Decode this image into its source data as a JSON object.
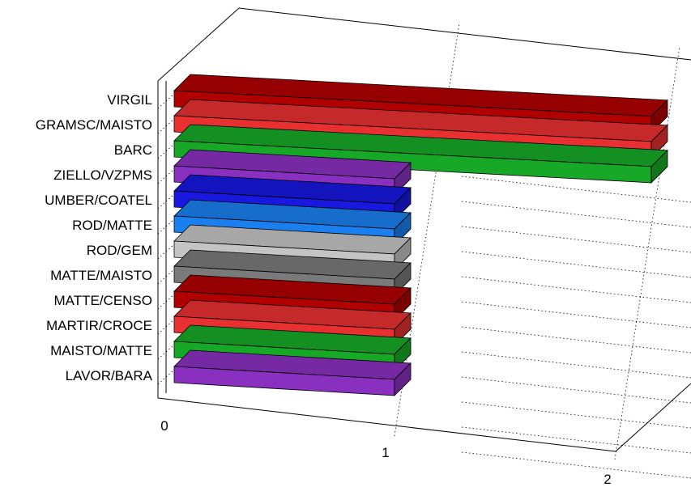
{
  "chart_data": {
    "type": "bar",
    "orientation": "horizontal",
    "projection": "3d",
    "categories": [
      "VIRGIL",
      "GRAMSC/MAISTO",
      "BARC",
      "ZIELLO/VZPMS",
      "UMBER/COATEL",
      "ROD/MATTE",
      "ROD/GEM",
      "MATTE/MAISTO",
      "MATTE/CENSO",
      "MARTIR/CROCE",
      "MAISTO/MATTE",
      "LAVOR/BARA"
    ],
    "values": [
      2,
      2,
      2,
      1,
      1,
      1,
      1,
      1,
      1,
      1,
      1,
      1
    ],
    "colors": [
      "#b00000",
      "#e83030",
      "#18a828",
      "#8a30c0",
      "#1818e0",
      "#1a80f0",
      "#c4c4c4",
      "#7a7a7a",
      "#b00000",
      "#e83030",
      "#18a828",
      "#8a30c0"
    ],
    "xticks": [
      "0",
      "1",
      "2"
    ],
    "xlim": [
      0,
      2.1
    ],
    "grid": true,
    "legend": "none",
    "title": "",
    "xlabel": "",
    "ylabel": ""
  }
}
